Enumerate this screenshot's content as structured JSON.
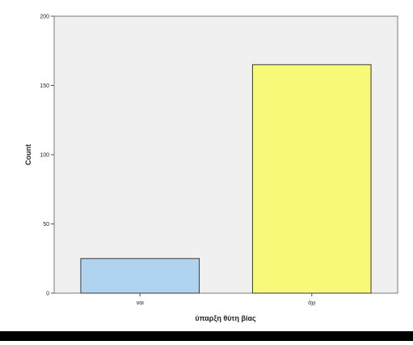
{
  "chart_data": {
    "type": "bar",
    "categories": [
      "ναι",
      "όχι"
    ],
    "values": [
      25,
      165
    ],
    "xlabel": "ύπαρξη θύτη βίας",
    "ylabel": "Count",
    "ylim": [
      0,
      200
    ],
    "yticks": [
      0,
      50,
      100,
      150,
      200
    ],
    "grid": false,
    "legend": "none",
    "colors": {
      "plot_background": "#f0f0f0",
      "plot_border": "#7a7a7a",
      "bar_outline": "#3a3a3a",
      "bars": [
        "#b0d4f0",
        "#f8f879"
      ]
    }
  }
}
